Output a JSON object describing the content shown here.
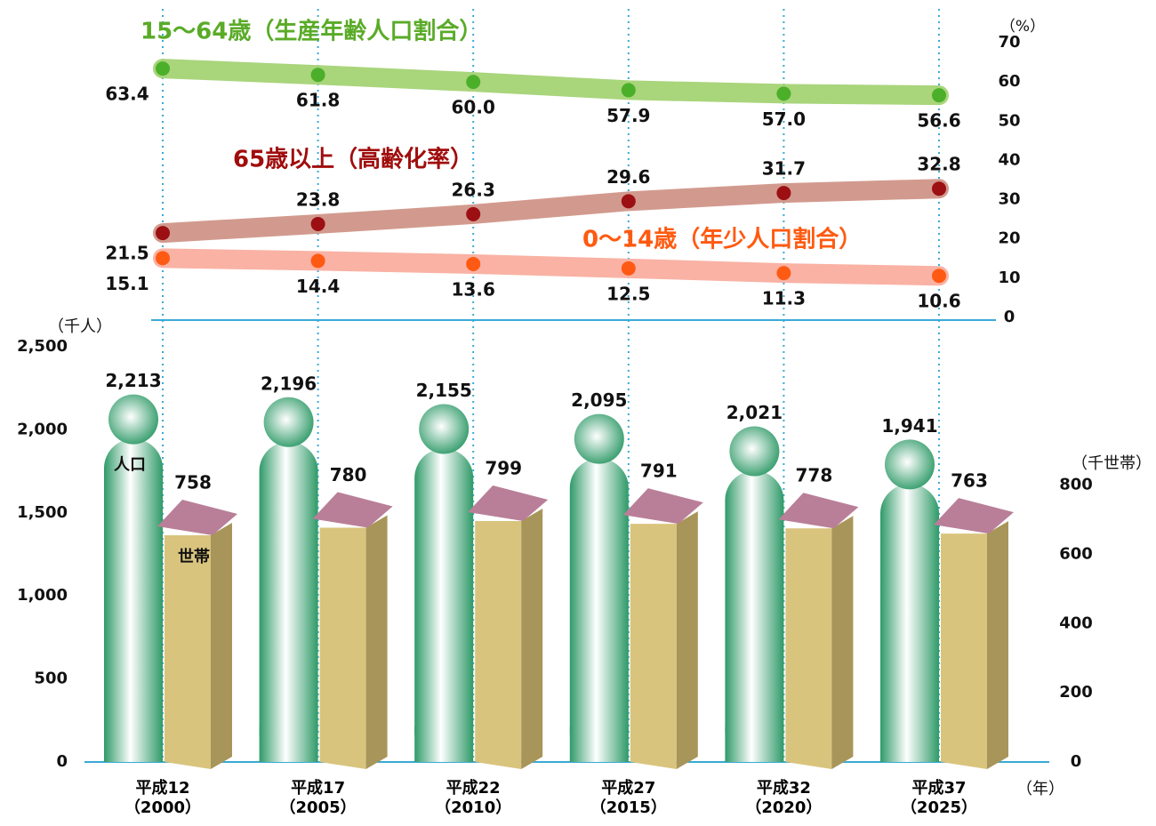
{
  "chart_data": [
    {
      "type": "line",
      "ylim": [
        0,
        70
      ],
      "yticks": [
        0,
        10,
        20,
        30,
        40,
        50,
        60,
        70
      ],
      "y_label": "（%）",
      "series": [
        {
          "name": "15～64歳（生産年齢人口割合）",
          "color": "#4caf2a",
          "band": "#a9d57b",
          "values": [
            63.4,
            61.8,
            60.0,
            57.9,
            57.0,
            56.6
          ],
          "value_labels": [
            "63.4",
            "61.8",
            "60.0",
            "57.9",
            "57.0",
            "56.6"
          ]
        },
        {
          "name": "65歳以上（高齢化率）",
          "color": "#9c0f12",
          "band": "#d29a8e",
          "values": [
            21.5,
            23.8,
            26.3,
            29.6,
            31.7,
            32.8
          ]
        },
        {
          "name": "0～14歳（年少人口割合）",
          "color": "#ff5a14",
          "band": "#f9b2a4",
          "values": [
            15.1,
            14.4,
            13.6,
            12.5,
            11.3,
            10.6
          ]
        }
      ]
    },
    {
      "type": "bar",
      "categories": [
        "平成12\n（2000）",
        "平成17\n（2005）",
        "平成22\n（2010）",
        "平成27\n（2015）",
        "平成32\n（2020）",
        "平成37\n（2025）"
      ],
      "ylim": [
        0,
        2500
      ],
      "yticks": [
        0,
        500,
        {
          "value": 1000,
          "label": "1,000"
        },
        {
          "value": 1500,
          "label": "1,500"
        },
        {
          "value": 2000,
          "label": "2,000"
        },
        {
          "value": 2500,
          "label": "2,500"
        }
      ],
      "y2lim": [
        0,
        1200
      ],
      "y2ticks": [
        0,
        200,
        400,
        600,
        800
      ],
      "y_label": "（千人）",
      "y2_label": "（千世帯）",
      "x_label": "（年）",
      "series": [
        {
          "name": "人口",
          "color": "#5cb88a",
          "values": [
            2213,
            2196,
            2155,
            2095,
            2021,
            1941
          ],
          "value_labels": [
            "2,213",
            "2,196",
            "2,155",
            "2,095",
            "2,021",
            "1,941"
          ]
        },
        {
          "name": "世帯",
          "color": "#d9c47e",
          "axis": "y2",
          "values": [
            758,
            780,
            799,
            791,
            778,
            763
          ]
        }
      ]
    }
  ]
}
